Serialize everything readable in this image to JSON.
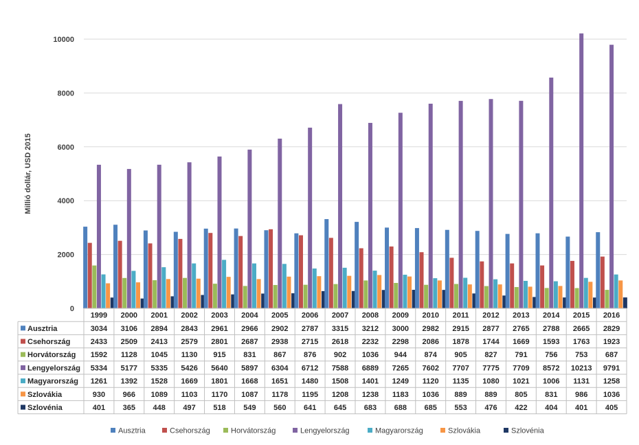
{
  "chart_data": {
    "type": "bar",
    "ylabel": "Millió dollár, USD 2015",
    "ylim": [
      0,
      10000
    ],
    "yticks": [
      0,
      2000,
      4000,
      6000,
      8000,
      10000
    ],
    "grid": true,
    "legend_position": "bottom",
    "data_table": true,
    "categories": [
      "1999",
      "2000",
      "2001",
      "2002",
      "2003",
      "2004",
      "2005",
      "2006",
      "2007",
      "2008",
      "2009",
      "2010",
      "2011",
      "2012",
      "2013",
      "2014",
      "2015",
      "2016"
    ],
    "series": [
      {
        "name": "Ausztria",
        "color": "#4F81BD",
        "values": [
          3034,
          3106,
          2894,
          2843,
          2961,
          2966,
          2902,
          2787,
          3315,
          3212,
          3000,
          2982,
          2915,
          2877,
          2765,
          2788,
          2665,
          2829
        ]
      },
      {
        "name": "Csehország",
        "color": "#C0504D",
        "values": [
          2433,
          2509,
          2413,
          2579,
          2801,
          2687,
          2938,
          2715,
          2618,
          2232,
          2298,
          2086,
          1878,
          1744,
          1669,
          1593,
          1763,
          1923
        ]
      },
      {
        "name": "Horvátország",
        "color": "#9BBB59",
        "values": [
          1592,
          1128,
          1045,
          1130,
          915,
          831,
          867,
          876,
          902,
          1036,
          944,
          874,
          905,
          827,
          791,
          756,
          753,
          687
        ]
      },
      {
        "name": "Lengyelország",
        "color": "#8064A2",
        "values": [
          5334,
          5177,
          5335,
          5426,
          5640,
          5897,
          6304,
          6712,
          7588,
          6889,
          7265,
          7602,
          7707,
          7775,
          7709,
          8572,
          10213,
          9791
        ]
      },
      {
        "name": "Magyarország",
        "color": "#4BACC6",
        "values": [
          1261,
          1392,
          1528,
          1669,
          1801,
          1668,
          1651,
          1480,
          1508,
          1401,
          1249,
          1120,
          1135,
          1080,
          1021,
          1006,
          1131,
          1258
        ]
      },
      {
        "name": "Szlovákia",
        "color": "#F79646",
        "values": [
          930,
          966,
          1089,
          1103,
          1170,
          1087,
          1178,
          1195,
          1208,
          1238,
          1183,
          1036,
          889,
          889,
          805,
          831,
          986,
          1036
        ]
      },
      {
        "name": "Szlovénia",
        "color": "#1F3864",
        "values": [
          401,
          365,
          448,
          497,
          518,
          549,
          560,
          641,
          645,
          683,
          688,
          685,
          553,
          476,
          422,
          404,
          401,
          405
        ]
      }
    ]
  }
}
